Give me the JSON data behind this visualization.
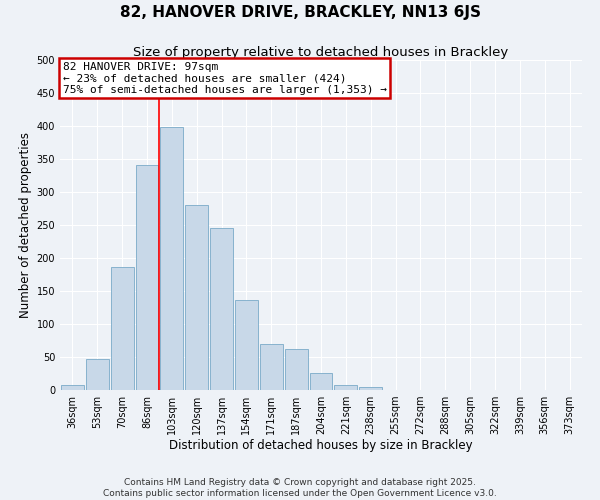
{
  "title": "82, HANOVER DRIVE, BRACKLEY, NN13 6JS",
  "subtitle": "Size of property relative to detached houses in Brackley",
  "xlabel": "Distribution of detached houses by size in Brackley",
  "ylabel": "Number of detached properties",
  "bar_labels": [
    "36sqm",
    "53sqm",
    "70sqm",
    "86sqm",
    "103sqm",
    "120sqm",
    "137sqm",
    "154sqm",
    "171sqm",
    "187sqm",
    "204sqm",
    "221sqm",
    "238sqm",
    "255sqm",
    "272sqm",
    "288sqm",
    "305sqm",
    "322sqm",
    "339sqm",
    "356sqm",
    "373sqm"
  ],
  "bar_values": [
    8,
    47,
    187,
    341,
    399,
    280,
    246,
    137,
    70,
    62,
    26,
    8,
    5,
    0,
    0,
    0,
    0,
    0,
    0,
    0,
    0
  ],
  "bar_color": "#c8d8e8",
  "bar_edge_color": "#7aaac8",
  "property_line_x": 4,
  "property_line_label": "82 HANOVER DRIVE: 97sqm",
  "annotation_line1": "← 23% of detached houses are smaller (424)",
  "annotation_line2": "75% of semi-detached houses are larger (1,353) →",
  "annotation_box_color": "#ffffff",
  "annotation_box_edge": "#cc0000",
  "ylim": [
    0,
    500
  ],
  "yticks": [
    0,
    50,
    100,
    150,
    200,
    250,
    300,
    350,
    400,
    450,
    500
  ],
  "footer1": "Contains HM Land Registry data © Crown copyright and database right 2025.",
  "footer2": "Contains public sector information licensed under the Open Government Licence v3.0.",
  "bg_color": "#eef2f7",
  "grid_color": "#ffffff",
  "title_fontsize": 11,
  "subtitle_fontsize": 9.5,
  "axis_label_fontsize": 8.5,
  "tick_fontsize": 7,
  "footer_fontsize": 6.5,
  "annotation_fontsize": 8
}
